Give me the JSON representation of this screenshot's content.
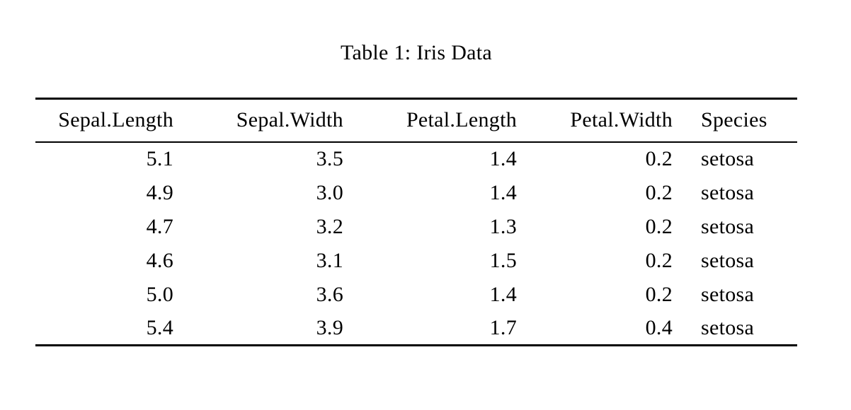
{
  "page": {
    "background_color": "#ffffff",
    "text_color": "#000000"
  },
  "table": {
    "caption": "Table 1: Iris Data",
    "columns": [
      {
        "label": "Sepal.Length",
        "align": "right"
      },
      {
        "label": "Sepal.Width",
        "align": "right"
      },
      {
        "label": "Petal.Length",
        "align": "right"
      },
      {
        "label": "Petal.Width",
        "align": "right"
      },
      {
        "label": "Species",
        "align": "left"
      }
    ],
    "rows": [
      [
        "5.1",
        "3.5",
        "1.4",
        "0.2",
        "setosa"
      ],
      [
        "4.9",
        "3.0",
        "1.4",
        "0.2",
        "setosa"
      ],
      [
        "4.7",
        "3.2",
        "1.3",
        "0.2",
        "setosa"
      ],
      [
        "4.6",
        "3.1",
        "1.5",
        "0.2",
        "setosa"
      ],
      [
        "5.0",
        "3.6",
        "1.4",
        "0.2",
        "setosa"
      ],
      [
        "5.4",
        "3.9",
        "1.7",
        "0.4",
        "setosa"
      ]
    ]
  }
}
